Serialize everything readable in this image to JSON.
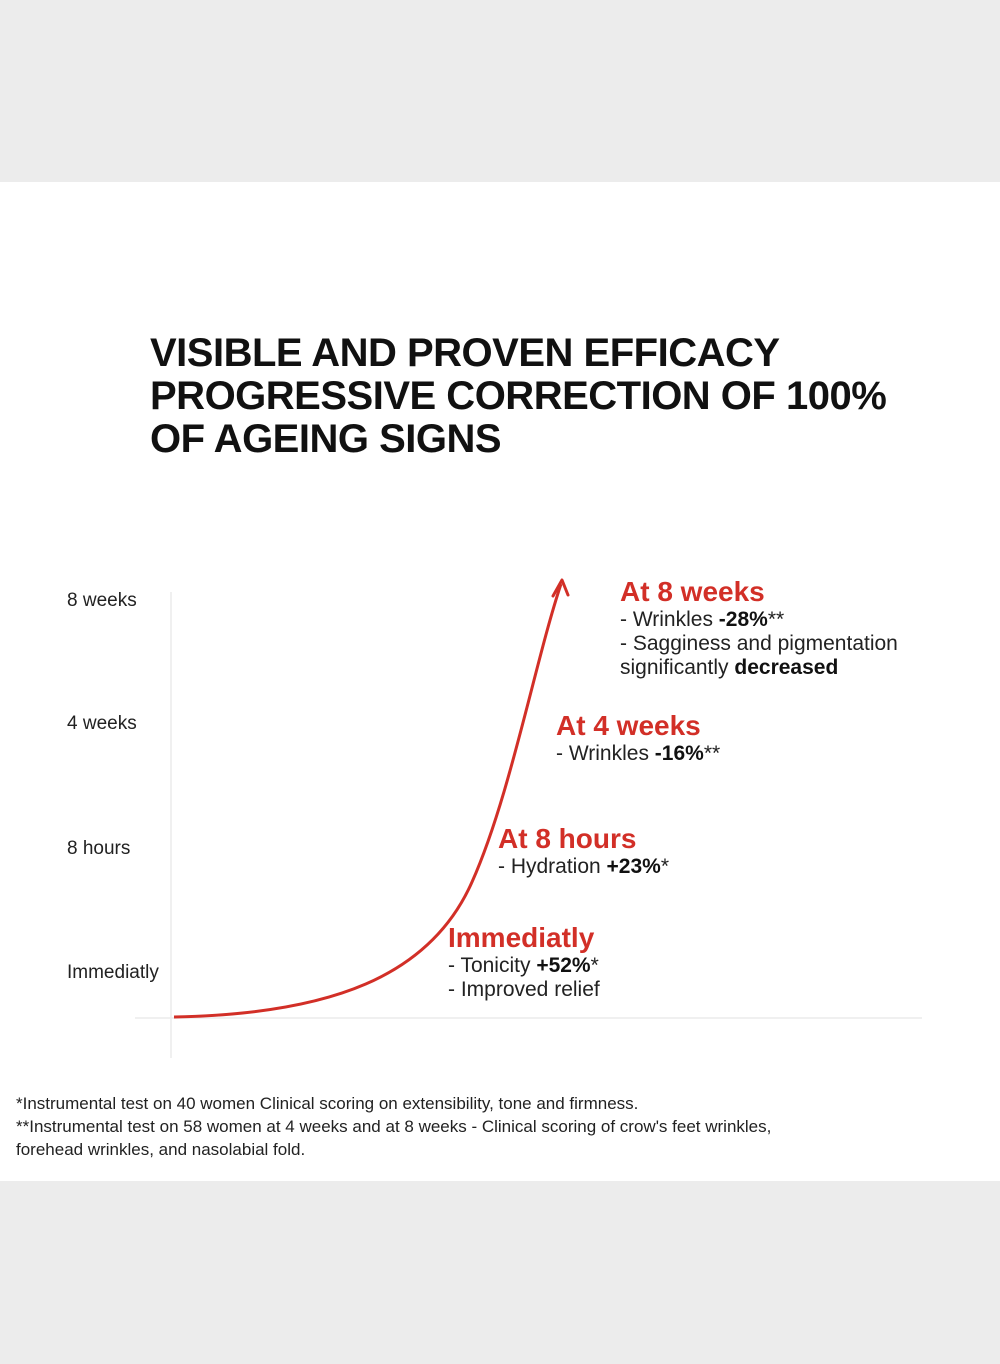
{
  "title": {
    "line1": "VISIBLE AND PROVEN EFFICACY",
    "line2": "PROGRESSIVE CORRECTION OF 100%",
    "line3": "OF AGEING SIGNS"
  },
  "chart_data": {
    "type": "line",
    "x": [
      "Immediatly",
      "8 hours",
      "4 weeks",
      "8 weeks"
    ],
    "series": [
      {
        "values": [
          0,
          1,
          2,
          3
        ]
      }
    ],
    "axis_labels": [
      "8 weeks",
      "4 weeks",
      "8 hours",
      "Immediatly"
    ],
    "line_color": "#d22f27",
    "annotations": [
      {
        "heading": "At 8 weeks",
        "lines": [
          {
            "prefix": "- Wrinkles ",
            "bold": "-28%",
            "suffix": "**"
          },
          {
            "prefix": "- Sagginess and pigmentation",
            "bold": "",
            "suffix": ""
          },
          {
            "prefix": "significantly ",
            "bold": "decreased",
            "suffix": ""
          }
        ]
      },
      {
        "heading": "At 4 weeks",
        "lines": [
          {
            "prefix": "- Wrinkles ",
            "bold": "-16%",
            "suffix": "**"
          }
        ]
      },
      {
        "heading": "At 8 hours",
        "lines": [
          {
            "prefix": "- Hydration ",
            "bold": "+23%",
            "suffix": "*"
          }
        ]
      },
      {
        "heading": "Immediatly",
        "lines": [
          {
            "prefix": "- Tonicity ",
            "bold": "+52%",
            "suffix": "*"
          },
          {
            "prefix": "- Improved relief",
            "bold": "",
            "suffix": ""
          }
        ]
      }
    ]
  },
  "footnotes": {
    "line1": "*Instrumental test on 40 women Clinical scoring on extensibility, tone and firmness.",
    "line2": "**Instrumental test on 58 women at 4 weeks and at 8 weeks - Clinical scoring of crow's feet wrinkles,",
    "line3": "forehead wrinkles, and nasolabial fold."
  }
}
